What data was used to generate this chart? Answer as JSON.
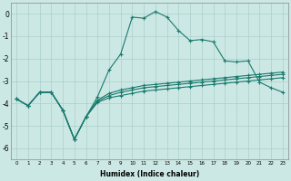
{
  "xlabel": "Humidex (Indice chaleur)",
  "background_color": "#cce8e4",
  "grid_color": "#aacfcc",
  "line_color": "#1a7a6e",
  "x_hours": [
    0,
    1,
    2,
    3,
    4,
    5,
    6,
    7,
    8,
    9,
    10,
    11,
    12,
    13,
    14,
    15,
    16,
    17,
    18,
    19,
    20,
    21,
    22,
    23
  ],
  "series1": [
    -3.8,
    -4.1,
    -3.5,
    -3.5,
    -4.3,
    -5.6,
    -4.6,
    -3.7,
    -2.5,
    -1.8,
    -0.15,
    -0.2,
    0.1,
    -0.15,
    -0.75,
    -1.2,
    -1.15,
    -1.25,
    -2.1,
    -2.15,
    -2.1,
    -3.05,
    -3.3,
    -3.5
  ],
  "series2": [
    -3.8,
    -4.1,
    -3.5,
    -3.5,
    -4.3,
    -5.6,
    -4.6,
    -3.85,
    -3.55,
    -3.4,
    -3.3,
    -3.2,
    -3.15,
    -3.1,
    -3.05,
    -3.0,
    -2.95,
    -2.9,
    -2.85,
    -2.8,
    -2.75,
    -2.7,
    -2.65,
    -2.6
  ],
  "series3": [
    -3.8,
    -4.1,
    -3.5,
    -3.5,
    -4.3,
    -5.6,
    -4.6,
    -3.9,
    -3.65,
    -3.5,
    -3.4,
    -3.3,
    -3.25,
    -3.2,
    -3.15,
    -3.1,
    -3.05,
    -3.0,
    -2.95,
    -2.9,
    -2.85,
    -2.8,
    -2.75,
    -2.7
  ],
  "series4": [
    -3.8,
    -4.1,
    -3.5,
    -3.5,
    -4.3,
    -5.6,
    -4.6,
    -3.95,
    -3.75,
    -3.65,
    -3.55,
    -3.45,
    -3.4,
    -3.35,
    -3.3,
    -3.25,
    -3.2,
    -3.15,
    -3.1,
    -3.05,
    -3.0,
    -2.95,
    -2.9,
    -2.85
  ],
  "ylim": [
    -6.5,
    0.5
  ],
  "yticks": [
    0,
    -1,
    -2,
    -3,
    -4,
    -5,
    -6
  ]
}
